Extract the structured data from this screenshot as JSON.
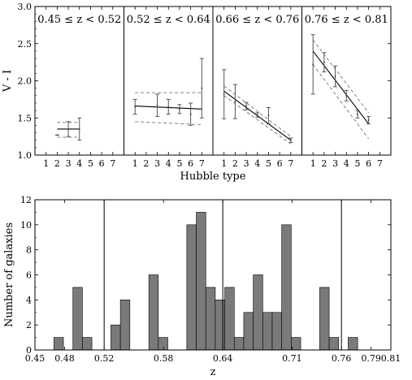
{
  "chart_data": [
    {
      "type": "scatter",
      "ylabel": "V - I",
      "xlabel": "Hubble type",
      "ylim": [
        1.0,
        3.0
      ],
      "xlim": [
        0,
        8
      ],
      "yticks": [
        "1.0",
        "1.5",
        "2.0",
        "2.5",
        "3.0"
      ],
      "xticks": [
        "1",
        "2",
        "3",
        "4",
        "5",
        "6",
        "7"
      ],
      "grid": false,
      "panels": [
        {
          "title": "0.45 ≤ z < 0.52",
          "points": [
            {
              "x": 2,
              "y": 1.27,
              "yerr": 0.0
            },
            {
              "x": 3,
              "y": 1.35,
              "yerr": 0.1
            },
            {
              "x": 4,
              "y": 1.35,
              "yerr": 0.15
            }
          ],
          "fit": {
            "x": [
              2,
              4
            ],
            "y": [
              1.35,
              1.35
            ]
          },
          "band_upper": [
            1.44,
            1.44
          ],
          "band_lower": [
            1.24,
            1.24
          ]
        },
        {
          "title": "0.52 ≤ z < 0.64",
          "points": [
            {
              "x": 1,
              "y": 1.65,
              "yerr": 0.1
            },
            {
              "x": 3,
              "y": 1.67,
              "yerr": 0.15
            },
            {
              "x": 4,
              "y": 1.65,
              "yerr": 0.1
            },
            {
              "x": 5,
              "y": 1.62,
              "yerr": 0.06
            },
            {
              "x": 6,
              "y": 1.55,
              "yerr": 0.15
            },
            {
              "x": 7,
              "y": 1.9,
              "yerr": 0.4
            }
          ],
          "fit": {
            "x": [
              1,
              7
            ],
            "y": [
              1.66,
              1.62
            ]
          },
          "band_upper": [
            1.84,
            1.84
          ],
          "band_lower": [
            1.45,
            1.41
          ]
        },
        {
          "title": "0.66 ≤ z < 0.76",
          "points": [
            {
              "x": 1,
              "y": 1.82,
              "yerr": 0.33
            },
            {
              "x": 2,
              "y": 1.72,
              "yerr": 0.23
            },
            {
              "x": 3,
              "y": 1.66,
              "yerr": 0.05
            },
            {
              "x": 4,
              "y": 1.54,
              "yerr": 0.03
            },
            {
              "x": 5,
              "y": 1.53,
              "yerr": 0.11
            },
            {
              "x": 7,
              "y": 1.2,
              "yerr": 0.03
            }
          ],
          "fit": {
            "x": [
              1,
              7
            ],
            "y": [
              1.86,
              1.2
            ]
          },
          "band_upper": [
            1.93,
            1.25
          ],
          "band_lower": [
            1.8,
            1.15
          ]
        },
        {
          "title": "0.76 ≤ z < 0.81",
          "points": [
            {
              "x": 1,
              "y": 2.22,
              "yerr": 0.4
            },
            {
              "x": 2,
              "y": 2.25,
              "yerr": 0.13
            },
            {
              "x": 3,
              "y": 2.06,
              "yerr": 0.14
            },
            {
              "x": 4,
              "y": 1.8,
              "yerr": 0.07
            },
            {
              "x": 5,
              "y": 1.55,
              "yerr": 0.05
            },
            {
              "x": 6,
              "y": 1.47,
              "yerr": 0.05
            }
          ],
          "fit": {
            "x": [
              1,
              6
            ],
            "y": [
              2.4,
              1.42
            ]
          },
          "band_upper": [
            2.55,
            1.57
          ],
          "band_lower": [
            2.22,
            1.22
          ]
        }
      ]
    },
    {
      "type": "bar",
      "xlabel": "z",
      "ylabel": "Number of galaxies",
      "xlim": [
        0.45,
        0.81
      ],
      "ylim": [
        0,
        12
      ],
      "xticks": [
        "0.45",
        "0.48",
        "0.52",
        "0.58",
        "0.64",
        "0.71",
        "0.76",
        "0.79",
        "0.81"
      ],
      "xtick_values": [
        0.45,
        0.48,
        0.52,
        0.58,
        0.64,
        0.71,
        0.76,
        0.79,
        0.81
      ],
      "yticks": [
        "0",
        "2",
        "4",
        "6",
        "8",
        "10",
        "12"
      ],
      "bin_width": 0.0096,
      "bin_start": 0.4596,
      "values": [
        0,
        1,
        0,
        5,
        1,
        0,
        0,
        2,
        4,
        0,
        0,
        6,
        1,
        0,
        0,
        10,
        11,
        5,
        4,
        5,
        1,
        3,
        6,
        3,
        3,
        10,
        1,
        0,
        0,
        5,
        1,
        0,
        1
      ],
      "dividers": [
        0.52,
        0.64,
        0.76
      ],
      "bar_color": "#7a7a7a",
      "grid": false
    }
  ]
}
